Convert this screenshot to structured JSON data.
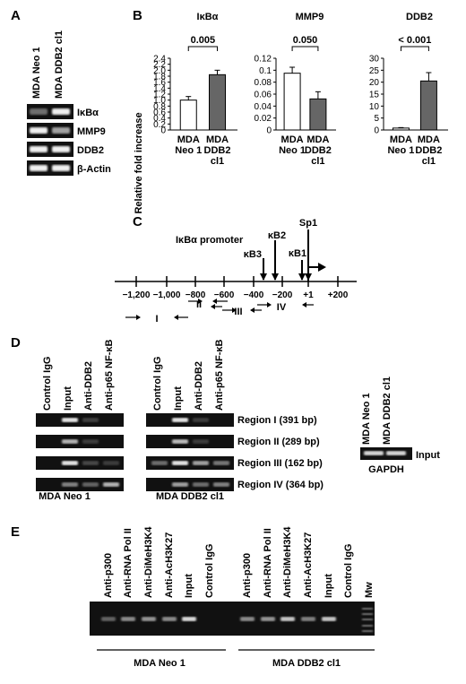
{
  "panels": {
    "A": "A",
    "B": "B",
    "C": "C",
    "D": "D",
    "E": "E"
  },
  "panelA": {
    "lanes": [
      "MDA Neo 1",
      "MDA DDB2 cl1"
    ],
    "genes": [
      "IκBα",
      "MMP9",
      "DDB2",
      "β-Actin"
    ],
    "band_intensity": [
      [
        0.35,
        1.0
      ],
      [
        1.0,
        0.6
      ],
      [
        1.0,
        1.0
      ],
      [
        1.0,
        1.0
      ]
    ]
  },
  "chart_data": [
    {
      "type": "bar",
      "title": "IκBα",
      "ylabel": "Relative fold increase",
      "categories": [
        "MDA\nNeo 1",
        "MDA\nDDB2\ncl1"
      ],
      "values": [
        1.0,
        1.85
      ],
      "errors": [
        0.12,
        0.15
      ],
      "colors": [
        "#ffffff",
        "#666666"
      ],
      "ylim": [
        0,
        2.4
      ],
      "yticks": [
        "0",
        "0.2",
        "0.4",
        "0.6",
        "0.8",
        "1.0",
        "1.2",
        "1.4",
        "1.6",
        "1.8",
        "2.0",
        "2.2",
        "2.4"
      ],
      "annotation": "0.005"
    },
    {
      "type": "bar",
      "title": "MMP9",
      "ylabel": "",
      "categories": [
        "MDA\nNeo 1",
        "MDA\nDDB2\ncl1"
      ],
      "values": [
        0.095,
        0.052
      ],
      "errors": [
        0.01,
        0.012
      ],
      "colors": [
        "#ffffff",
        "#666666"
      ],
      "ylim": [
        0,
        0.12
      ],
      "yticks": [
        "0",
        "0.02",
        "0.04",
        "0.06",
        "0.08",
        "0.1",
        "0.12"
      ],
      "annotation": "0.050"
    },
    {
      "type": "bar",
      "title": "DDB2",
      "ylabel": "",
      "categories": [
        "MDA\nNeo 1",
        "MDA\nDDB2\ncl1"
      ],
      "values": [
        0.8,
        20.5
      ],
      "errors": [
        0.2,
        3.5
      ],
      "colors": [
        "#ffffff",
        "#666666"
      ],
      "ylim": [
        0,
        30
      ],
      "yticks": [
        "0",
        "5",
        "10",
        "15",
        "20",
        "25",
        "30"
      ],
      "annotation": "< 0.001"
    }
  ],
  "panelC": {
    "title": "IκBα promoter",
    "ticks": [
      "−1,200",
      "−1,000",
      "−800",
      "−600",
      "−400",
      "−200",
      "+1",
      "+200"
    ],
    "sites": [
      "κB3",
      "κB2",
      "κB1",
      "Sp1"
    ],
    "regions": [
      "I",
      "II",
      "III",
      "IV"
    ]
  },
  "panelD": {
    "lanes": [
      "Control IgG",
      "Input",
      "Anti-DDB2",
      "Anti-p65 NF-κB"
    ],
    "regions": [
      "Region I (391 bp)",
      "Region II (289 bp)",
      "Region III (162 bp)",
      "Region IV (364 bp)"
    ],
    "groups": [
      "MDA Neo 1",
      "MDA DDB2 cl1"
    ],
    "gapdh_lanes": [
      "MDA Neo 1",
      "MDA DDB2 cl1"
    ],
    "gapdh_label": "GAPDH",
    "input_label": "Input"
  },
  "panelE": {
    "lanes_left": [
      "Anti-p300",
      "Anti-RNA Pol II",
      "Anti-DiMeH3K4",
      "Anti-AcH3K27",
      "Input",
      "Control IgG"
    ],
    "lanes_right": [
      "Anti-p300",
      "Anti-RNA Pol II",
      "Anti-DiMeH3K4",
      "Anti-AcH3K27",
      "Input",
      "Control IgG",
      "Mw"
    ],
    "groups": [
      "MDA Neo 1",
      "MDA DDB2 cl1"
    ]
  }
}
